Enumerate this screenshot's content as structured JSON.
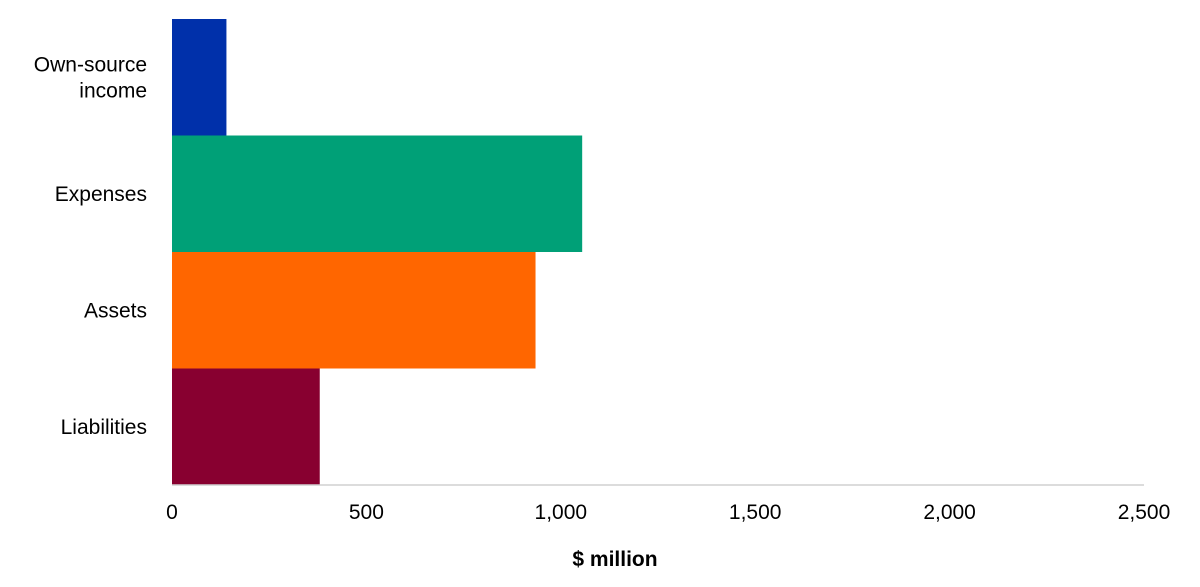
{
  "chart_data": {
    "type": "bar",
    "orientation": "horizontal",
    "title": "",
    "xlabel": "$ million",
    "ylabel": "",
    "categories": [
      [
        "Own-source",
        "income"
      ],
      [
        "Expenses"
      ],
      [
        "Assets"
      ],
      [
        "Liabilities"
      ]
    ],
    "values": [
      140,
      1055,
      935,
      380
    ],
    "colors": [
      "#0030AA",
      "#00A077",
      "#FF6600",
      "#880030"
    ],
    "xlim": [
      0,
      2500
    ],
    "xticks": [
      0,
      500,
      1000,
      1500,
      2000,
      2500
    ],
    "xtick_labels": [
      "0",
      "500",
      "1,000",
      "1,500",
      "2,000",
      "2,500"
    ],
    "grid": false,
    "legend": "none"
  }
}
